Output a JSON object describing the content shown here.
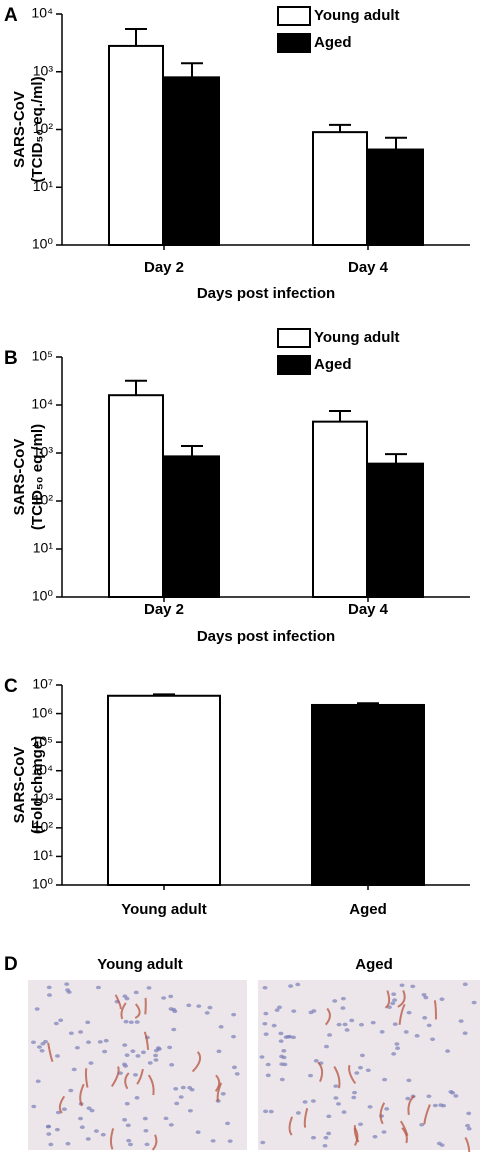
{
  "chart_data": [
    {
      "type": "bar",
      "panel": "A",
      "log_scale": true,
      "ylabel": [
        "SARS-CoV",
        "(TCID₅₀ eq./ml)"
      ],
      "xlabel": "Days post infection",
      "categories": [
        "Day 2",
        "Day 4"
      ],
      "series": [
        {
          "name": "Young adult",
          "color": "#ffffff",
          "values": [
            2800,
            90
          ],
          "errors": [
            2700,
            30
          ]
        },
        {
          "name": "Aged",
          "color": "#000000",
          "values": [
            800,
            45
          ],
          "errors": [
            600,
            27
          ]
        }
      ],
      "ylim": [
        1,
        10000
      ],
      "yticks": [
        {
          "value": 1,
          "label": "10⁰"
        },
        {
          "value": 10,
          "label": "10¹"
        },
        {
          "value": 100,
          "label": "10²"
        },
        {
          "value": 1000,
          "label": "10³"
        },
        {
          "value": 10000,
          "label": "10⁴"
        }
      ],
      "legend": "top-right"
    },
    {
      "type": "bar",
      "panel": "B",
      "log_scale": true,
      "ylabel": [
        "SARS-CoV",
        "(TCID₅₀ eq./ml)"
      ],
      "xlabel": "Days post infection",
      "categories": [
        "Day 2",
        "Day 4"
      ],
      "series": [
        {
          "name": "Young adult",
          "color": "#ffffff",
          "values": [
            16000,
            4500
          ],
          "errors": [
            16000,
            3000
          ]
        },
        {
          "name": "Aged",
          "color": "#000000",
          "values": [
            850,
            600
          ],
          "errors": [
            550,
            350
          ]
        }
      ],
      "ylim": [
        1,
        100000
      ],
      "yticks": [
        {
          "value": 1,
          "label": "10⁰"
        },
        {
          "value": 10,
          "label": "10¹"
        },
        {
          "value": 100,
          "label": "10²"
        },
        {
          "value": 1000,
          "label": "10³"
        },
        {
          "value": 10000,
          "label": "10⁴"
        },
        {
          "value": 100000,
          "label": "10⁵"
        }
      ],
      "legend": "top-right"
    },
    {
      "type": "bar",
      "panel": "C",
      "log_scale": true,
      "ylabel": [
        "SARS-CoV",
        "(Fold change)"
      ],
      "categories": [
        "Young adult",
        "Aged"
      ],
      "values": [
        4200000,
        2000000
      ],
      "errors": [
        500000,
        300000
      ],
      "colors": [
        "#ffffff",
        "#000000"
      ],
      "ylim": [
        1,
        10000000
      ],
      "yticks": [
        {
          "value": 1,
          "label": "10⁰"
        },
        {
          "value": 10,
          "label": "10¹"
        },
        {
          "value": 100,
          "label": "10²"
        },
        {
          "value": 1000,
          "label": "10³"
        },
        {
          "value": 10000,
          "label": "10⁴"
        },
        {
          "value": 100000,
          "label": "10⁵"
        },
        {
          "value": 1000000,
          "label": "10⁶"
        },
        {
          "value": 10000000,
          "label": "10⁷"
        }
      ]
    }
  ],
  "panel_d": {
    "panel": "D",
    "labels": [
      "Young adult",
      "Aged"
    ]
  }
}
